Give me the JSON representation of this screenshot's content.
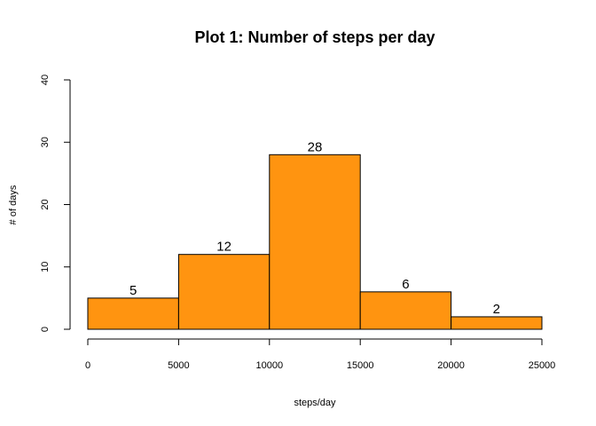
{
  "chart_data": {
    "type": "bar",
    "title": "Plot 1: Number of steps per day",
    "xlabel": "steps/day",
    "ylabel": "# of days",
    "bins": [
      {
        "from": 0,
        "to": 5000,
        "count": 5
      },
      {
        "from": 5000,
        "to": 10000,
        "count": 12
      },
      {
        "from": 10000,
        "to": 15000,
        "count": 28
      },
      {
        "from": 15000,
        "to": 20000,
        "count": 6
      },
      {
        "from": 20000,
        "to": 25000,
        "count": 2
      }
    ],
    "xticks": [
      0,
      5000,
      10000,
      15000,
      20000,
      25000
    ],
    "yticks": [
      0,
      10,
      20,
      30,
      40
    ],
    "xlim": [
      0,
      25000
    ],
    "ylim": [
      0,
      40
    ],
    "grid": false,
    "bar_color": "#FF9410",
    "bar_edge_color": "#000000"
  }
}
